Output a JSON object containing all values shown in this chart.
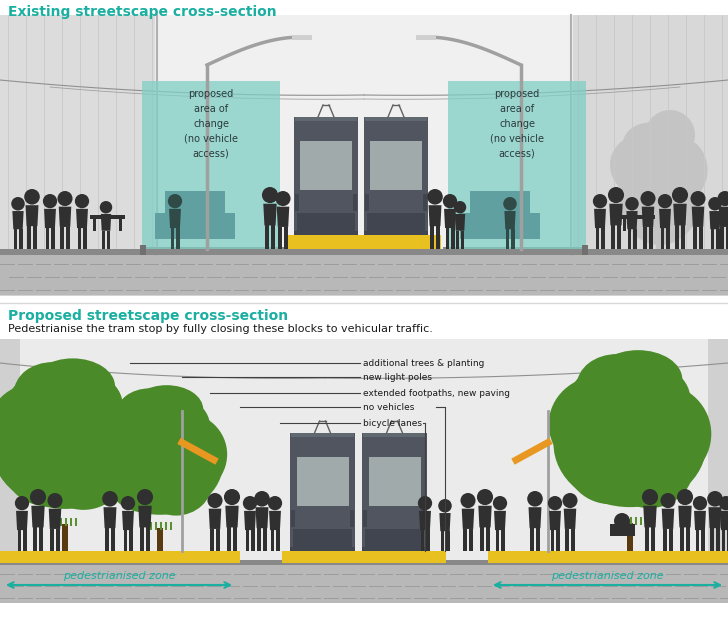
{
  "title_existing": "Existing streetscape cross-section",
  "title_proposed": "Proposed streetscape cross-section",
  "subtitle_proposed": "Pedestrianise the tram stop by fully closing these blocks to vehicular traffic.",
  "teal_color": "#1AAFA0",
  "yellow_color": "#E8C020",
  "light_teal_box": "#7FCFC5",
  "tram_body": "#505560",
  "tram_window": "#A0AAAA",
  "green_tree": "#4A8A28",
  "silhouette_color": "#303030",
  "car_color": "#70AAAA",
  "annotation_lines": [
    "additional trees & planting",
    "new light poles",
    "extended footpaths, new paving",
    "no vehicles",
    "bicycle lanes"
  ],
  "pedestrianised_label": "pedestrianised zone",
  "bg_color": "#FFFFFF",
  "panel_bg": "#ECECEC",
  "panel_border": "#C0C0C0",
  "pavement_color": "#B8B8B8",
  "pavement_dark": "#989898",
  "building_grey": "#D4D4D4",
  "bldg_right_grey": "#C8C8C8",
  "ghost_tree": "#C0C0C0",
  "pole_color": "#A0A0A0",
  "orange_arm": "#E89820"
}
